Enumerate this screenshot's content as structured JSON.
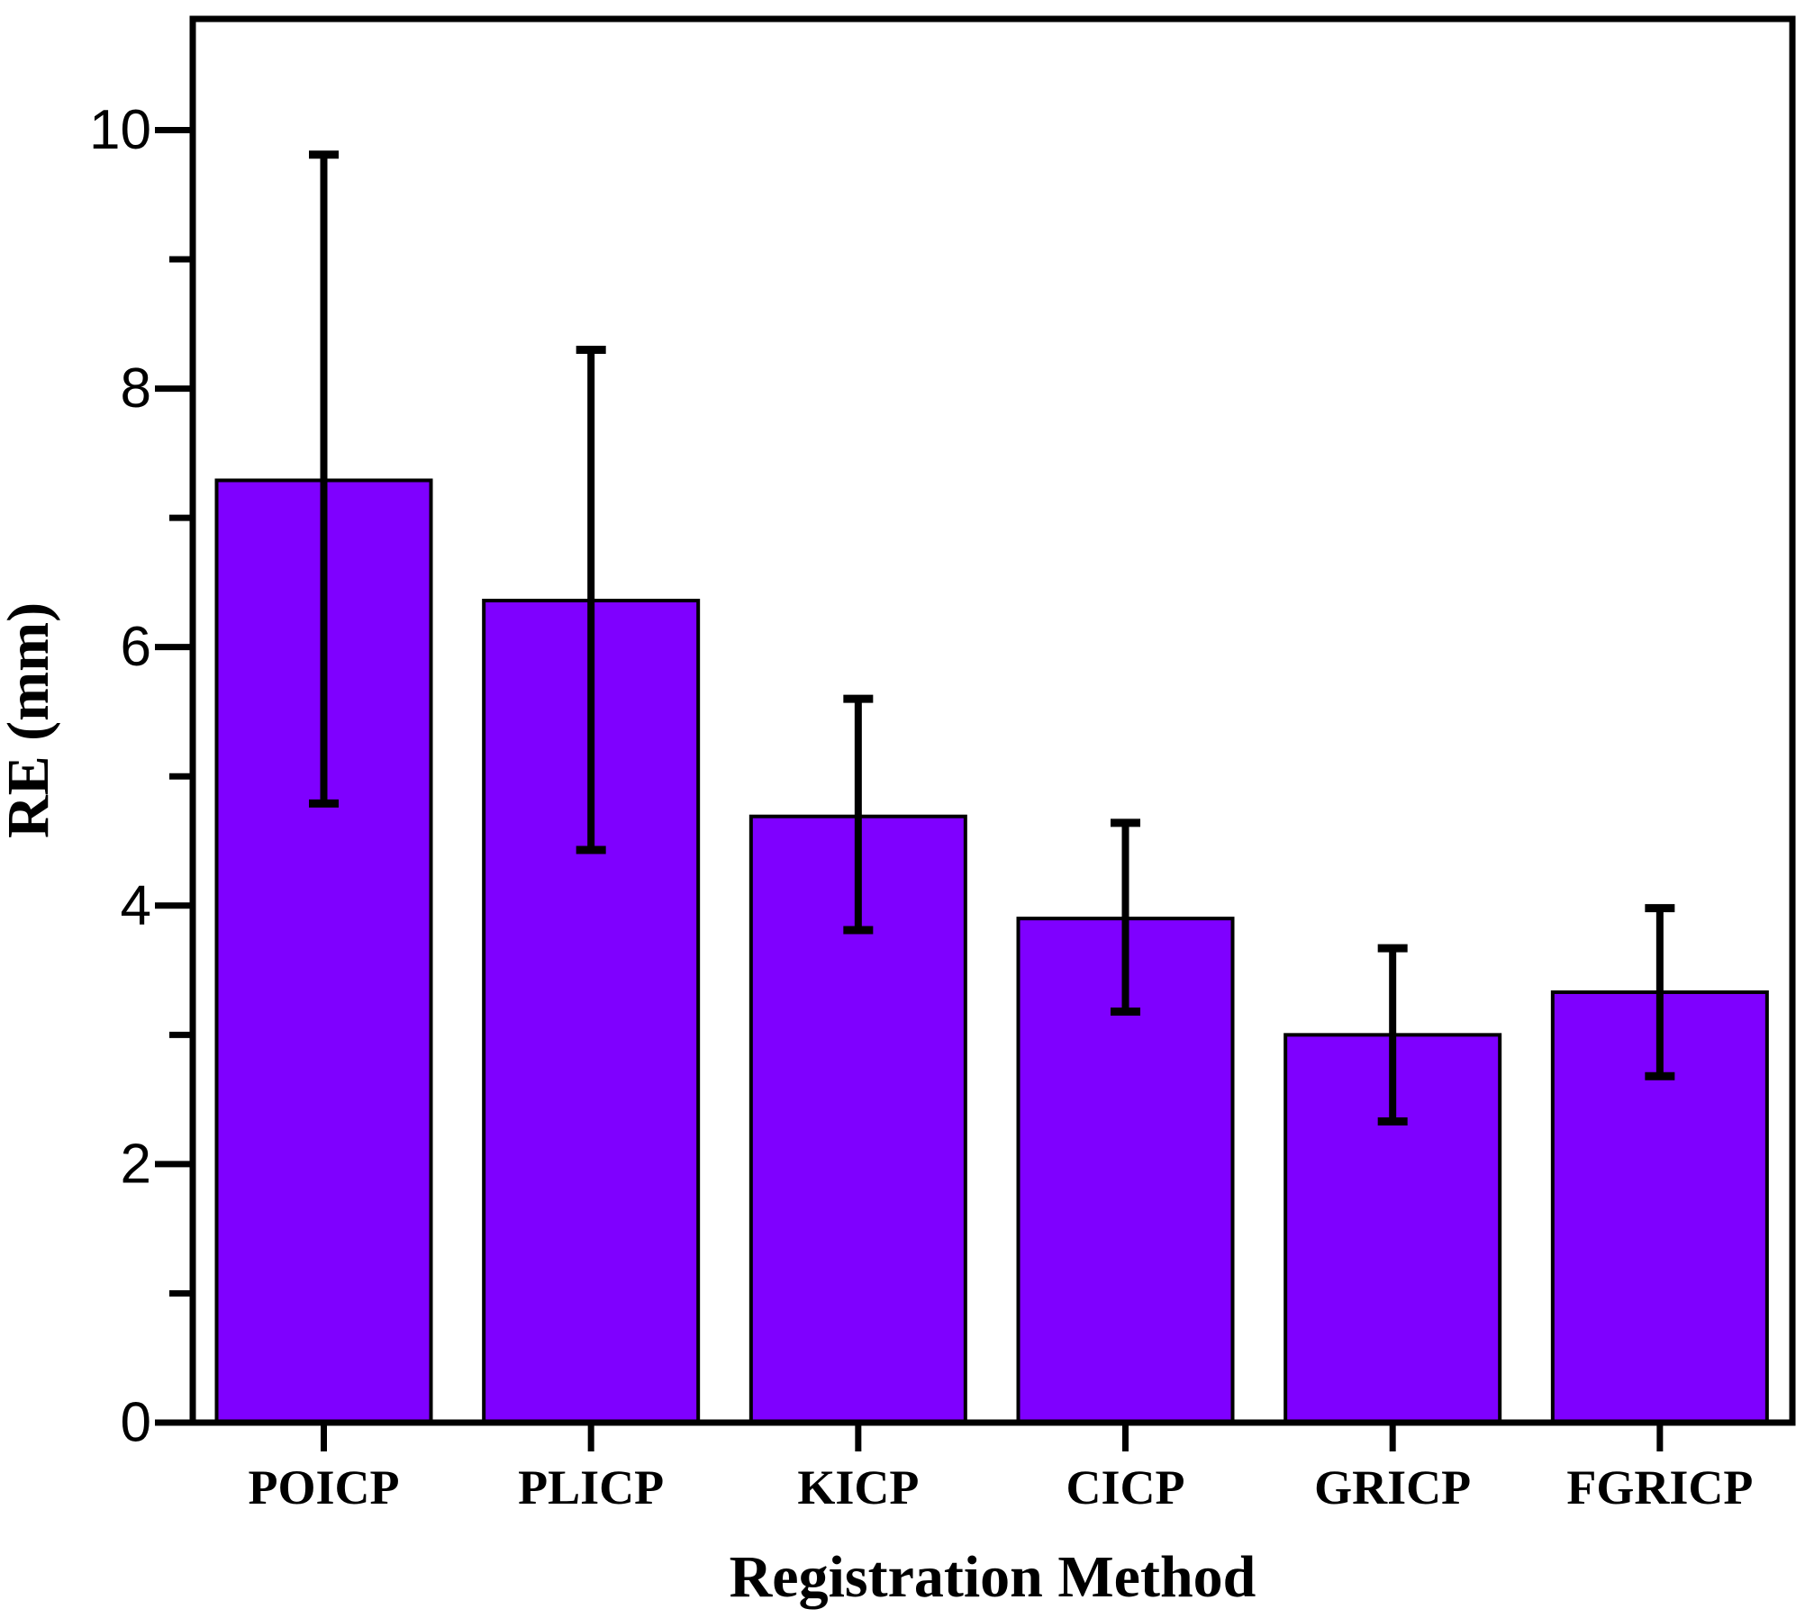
{
  "figure": {
    "background": "#ffffff"
  },
  "chart_data": {
    "type": "bar",
    "title": "",
    "xlabel": "Registration Method",
    "ylabel": "RE (mm)",
    "categories": [
      "POICP",
      "PLICP",
      "KICP",
      "CICP",
      "GRICP",
      "FGRICP"
    ],
    "values": [
      7.29,
      6.36,
      4.69,
      3.9,
      3.0,
      3.33
    ],
    "error_low": [
      4.79,
      4.43,
      3.81,
      3.18,
      2.33,
      2.68
    ],
    "error_high": [
      9.81,
      8.3,
      5.6,
      4.64,
      3.67,
      3.98
    ],
    "ylim": [
      0,
      10.86
    ],
    "yticks_major": [
      0,
      2,
      4,
      6,
      8,
      10
    ],
    "yticks_minor": [
      1,
      3,
      5,
      7,
      9
    ],
    "grid": "off",
    "legend": "none",
    "colors": {
      "bar_fill": "#7F00FF",
      "bar_border": "#000000",
      "axis": "#000000",
      "text": "#000000"
    }
  }
}
